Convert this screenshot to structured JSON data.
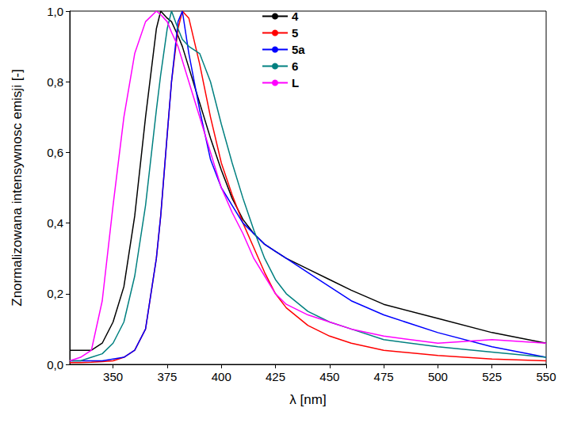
{
  "chart_data": {
    "type": "line",
    "x_label": "λ [nm]",
    "y_label": "Znormalizowana intensywnosc emisji [-]",
    "x": [
      330,
      335,
      340,
      345,
      350,
      355,
      360,
      365,
      370,
      372,
      375,
      377,
      380,
      382,
      385,
      390,
      395,
      400,
      405,
      410,
      415,
      420,
      425,
      430,
      440,
      450,
      460,
      475,
      500,
      525,
      550
    ],
    "series": [
      {
        "name": "4",
        "color": "#000000",
        "values": [
          0.04,
          0.04,
          0.04,
          0.06,
          0.12,
          0.22,
          0.42,
          0.7,
          0.95,
          1.0,
          0.98,
          0.97,
          0.93,
          0.9,
          0.84,
          0.74,
          0.64,
          0.55,
          0.47,
          0.41,
          0.37,
          0.34,
          0.32,
          0.3,
          0.27,
          0.24,
          0.21,
          0.17,
          0.13,
          0.09,
          0.06
        ]
      },
      {
        "name": "5",
        "color": "#ff0000",
        "values": [
          0.005,
          0.005,
          0.006,
          0.008,
          0.01,
          0.02,
          0.04,
          0.1,
          0.3,
          0.42,
          0.65,
          0.8,
          0.95,
          1.0,
          0.98,
          0.85,
          0.7,
          0.57,
          0.48,
          0.4,
          0.33,
          0.26,
          0.2,
          0.16,
          0.11,
          0.08,
          0.06,
          0.04,
          0.025,
          0.015,
          0.01
        ]
      },
      {
        "name": "5a",
        "color": "#0000ff",
        "values": [
          0.01,
          0.01,
          0.01,
          0.01,
          0.015,
          0.02,
          0.04,
          0.1,
          0.3,
          0.42,
          0.65,
          0.8,
          0.97,
          1.0,
          0.88,
          0.72,
          0.58,
          0.5,
          0.45,
          0.4,
          0.37,
          0.34,
          0.32,
          0.3,
          0.26,
          0.22,
          0.18,
          0.14,
          0.09,
          0.05,
          0.02
        ]
      },
      {
        "name": "6",
        "color": "#008080",
        "values": [
          0.01,
          0.01,
          0.02,
          0.03,
          0.06,
          0.12,
          0.25,
          0.45,
          0.72,
          0.82,
          0.95,
          1.0,
          0.95,
          0.92,
          0.9,
          0.88,
          0.8,
          0.68,
          0.57,
          0.47,
          0.38,
          0.3,
          0.24,
          0.2,
          0.15,
          0.12,
          0.1,
          0.07,
          0.05,
          0.035,
          0.02
        ]
      },
      {
        "name": "L",
        "color": "#ff00ff",
        "values": [
          0.01,
          0.02,
          0.04,
          0.18,
          0.45,
          0.7,
          0.88,
          0.97,
          1.0,
          0.99,
          0.97,
          0.94,
          0.9,
          0.86,
          0.8,
          0.7,
          0.6,
          0.5,
          0.43,
          0.37,
          0.3,
          0.25,
          0.2,
          0.17,
          0.14,
          0.12,
          0.1,
          0.08,
          0.06,
          0.07,
          0.06
        ]
      }
    ],
    "xlim": [
      330,
      550
    ],
    "xticks": [
      350,
      375,
      400,
      425,
      450,
      475,
      500,
      525,
      550
    ],
    "ylim": [
      0,
      1.0
    ],
    "yticks": [
      {
        "value": 0,
        "label": "0,0"
      },
      {
        "value": 0.2,
        "label": "0,2"
      },
      {
        "value": 0.4,
        "label": "0,4"
      },
      {
        "value": 0.6,
        "label": "0,6"
      },
      {
        "value": 0.8,
        "label": "0,8"
      },
      {
        "value": 1.0,
        "label": "1,0"
      }
    ],
    "grid": false,
    "legend": "top"
  }
}
